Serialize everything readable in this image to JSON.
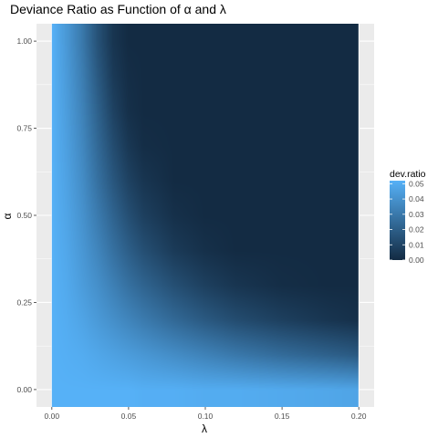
{
  "chart_data": {
    "type": "heatmap",
    "title": "Deviance Ratio as Function of α and λ",
    "xlabel": "λ",
    "ylabel": "α",
    "xlim": [
      0.0,
      0.2
    ],
    "ylim": [
      -0.05,
      1.05
    ],
    "x_ticks": [
      0.0,
      0.05,
      0.1,
      0.15,
      0.2
    ],
    "x_tick_labels": [
      "0.00",
      "0.05",
      "0.10",
      "0.15",
      "0.20"
    ],
    "y_ticks": [
      0.0,
      0.25,
      0.5,
      0.75,
      1.0
    ],
    "y_tick_labels": [
      "0.00",
      "0.25",
      "0.50",
      "0.75",
      "1.00"
    ],
    "grid": true,
    "value_name": "dev.ratio",
    "value_range": [
      0.0,
      0.052
    ],
    "color_low": "#132b43",
    "color_high": "#56b1f7",
    "panel_background": "#ebebeb",
    "grid_color": "#ffffff",
    "legend": {
      "title": "dev.ratio",
      "placement": "right",
      "breaks": [
        0.05,
        0.04,
        0.03,
        0.02,
        0.01,
        0.0
      ],
      "labels": [
        "0.05",
        "0.04",
        "0.03",
        "0.02",
        "0.01",
        "0.00"
      ]
    },
    "surface": {
      "description_values": "dev.ratio sampled on grid of lambda (columns) x alpha (rows)",
      "lambda": [
        0.0,
        0.01,
        0.02,
        0.03,
        0.04,
        0.05,
        0.06,
        0.08,
        0.1,
        0.12,
        0.15,
        0.18,
        0.2
      ],
      "alpha": [
        0.0,
        0.1,
        0.2,
        0.3,
        0.4,
        0.5,
        0.6,
        0.7,
        0.8,
        0.9,
        1.0
      ],
      "dev_ratio": [
        [
          0.052,
          0.052,
          0.052,
          0.052,
          0.052,
          0.052,
          0.051,
          0.051,
          0.05,
          0.05,
          0.049,
          0.048,
          0.047
        ],
        [
          0.052,
          0.051,
          0.05,
          0.048,
          0.046,
          0.044,
          0.042,
          0.038,
          0.034,
          0.03,
          0.025,
          0.021,
          0.018
        ],
        [
          0.052,
          0.05,
          0.047,
          0.043,
          0.039,
          0.035,
          0.031,
          0.024,
          0.018,
          0.013,
          0.008,
          0.004,
          0.002
        ],
        [
          0.052,
          0.049,
          0.044,
          0.039,
          0.033,
          0.027,
          0.022,
          0.014,
          0.008,
          0.004,
          0.001,
          0.0,
          0.0
        ],
        [
          0.052,
          0.048,
          0.042,
          0.035,
          0.027,
          0.02,
          0.014,
          0.006,
          0.002,
          0.0,
          0.0,
          0.0,
          0.0
        ],
        [
          0.052,
          0.047,
          0.04,
          0.031,
          0.022,
          0.014,
          0.008,
          0.002,
          0.0,
          0.0,
          0.0,
          0.0,
          0.0
        ],
        [
          0.052,
          0.046,
          0.038,
          0.027,
          0.017,
          0.009,
          0.004,
          0.0,
          0.0,
          0.0,
          0.0,
          0.0,
          0.0
        ],
        [
          0.052,
          0.045,
          0.036,
          0.024,
          0.013,
          0.005,
          0.001,
          0.0,
          0.0,
          0.0,
          0.0,
          0.0,
          0.0
        ],
        [
          0.052,
          0.044,
          0.034,
          0.021,
          0.009,
          0.002,
          0.0,
          0.0,
          0.0,
          0.0,
          0.0,
          0.0,
          0.0
        ],
        [
          0.052,
          0.043,
          0.032,
          0.018,
          0.006,
          0.001,
          0.0,
          0.0,
          0.0,
          0.0,
          0.0,
          0.0,
          0.0
        ],
        [
          0.052,
          0.042,
          0.03,
          0.015,
          0.004,
          0.0,
          0.0,
          0.0,
          0.0,
          0.0,
          0.0,
          0.0,
          0.0
        ]
      ]
    }
  }
}
